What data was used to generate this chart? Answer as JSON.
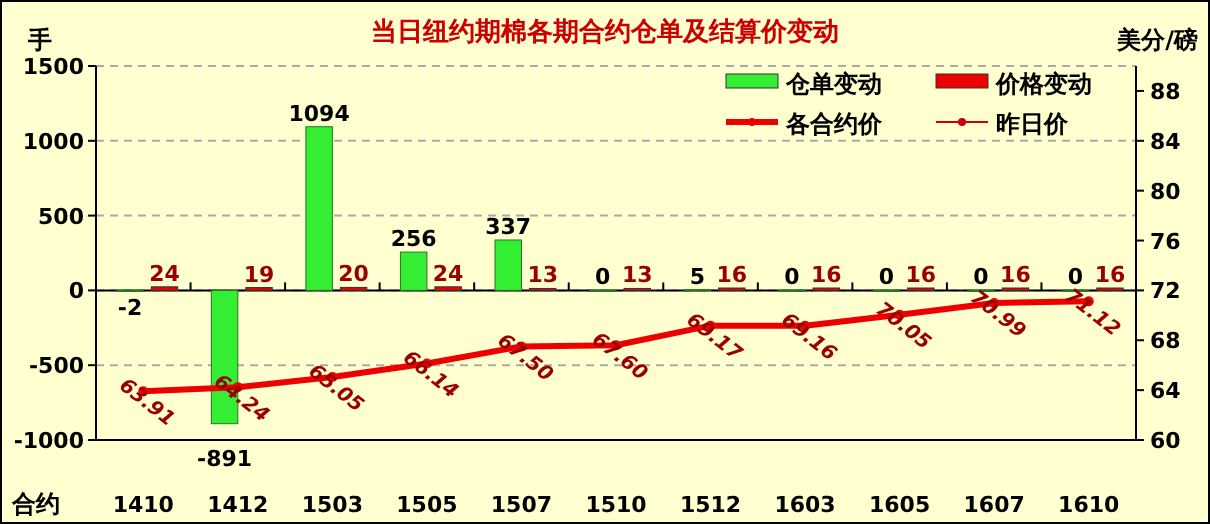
{
  "chart_data": {
    "type": "bar",
    "title": "当日纽约期棉各期合约仓单及结算价变动",
    "xlabel": "合约",
    "ylabel": "手",
    "y2label": "美分/磅",
    "categories": [
      "1410",
      "1412",
      "1503",
      "1505",
      "1507",
      "1510",
      "1512",
      "1603",
      "1605",
      "1607",
      "1610"
    ],
    "series": [
      {
        "name": "仓单变动",
        "color": "#33ee33",
        "values": [
          -2,
          -891,
          1094,
          256,
          337,
          0,
          5,
          0,
          0,
          0,
          0
        ]
      },
      {
        "name": "价格变动",
        "color": "#ee0000",
        "values": [
          24,
          19,
          20,
          24,
          13,
          13,
          16,
          16,
          16,
          16,
          16
        ]
      },
      {
        "name": "各合约价",
        "type": "line",
        "axis": "y2",
        "color": "#ee0000",
        "values": [
          63.91,
          64.24,
          65.05,
          66.14,
          67.5,
          67.6,
          69.17,
          69.16,
          70.05,
          70.99,
          71.12
        ],
        "value_labels": [
          "63.91",
          "64.24",
          "65.05",
          "66.14",
          "67.50",
          "67.60",
          "69.17",
          "69.16",
          "70.05",
          "70.99",
          "71.12"
        ]
      },
      {
        "name": "昨日价",
        "type": "line",
        "axis": "y2",
        "color": "#cc0000",
        "values": [
          null,
          null,
          null,
          null,
          null,
          null,
          null,
          null,
          null,
          null,
          null
        ]
      }
    ],
    "ylim": [
      -1000,
      1500
    ],
    "yticks": [
      -1000,
      -500,
      0,
      500,
      1000,
      1500
    ],
    "y2lim": [
      60,
      90
    ],
    "y2ticks": [
      60,
      64,
      68,
      72,
      76,
      80,
      84,
      88
    ],
    "grid": "y",
    "legend": "top right",
    "data_labels": true,
    "marker": "circle"
  }
}
